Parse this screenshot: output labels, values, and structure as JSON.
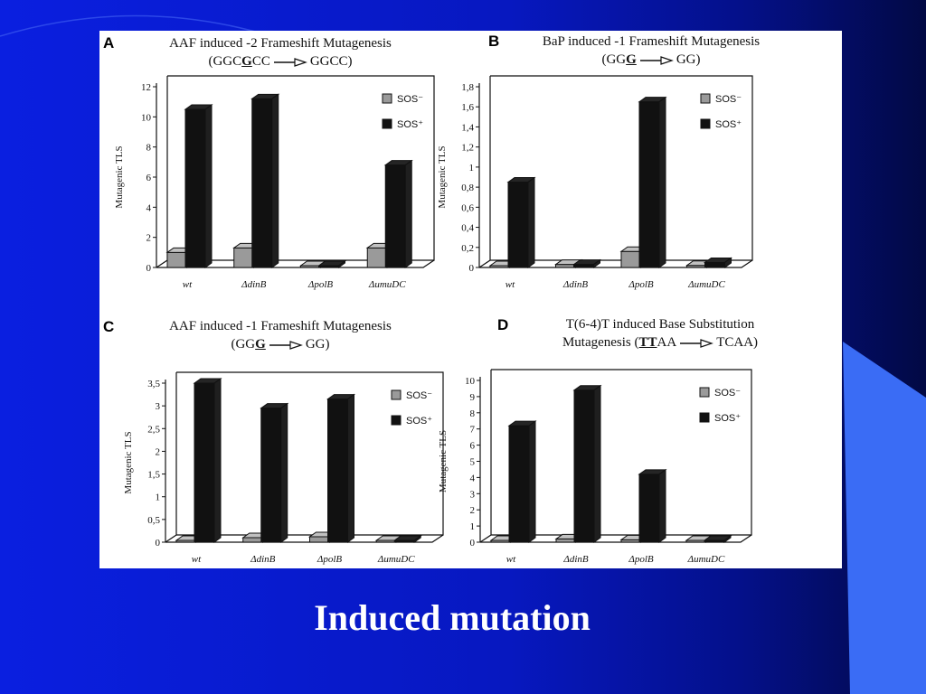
{
  "slide_title": "Induced mutation",
  "colors": {
    "sos_minus": "#9a9a9a",
    "sos_plus": "#111111",
    "background": "#0a1fe0"
  },
  "chart_data": [
    {
      "letter": "A",
      "type": "bar",
      "title_line1": "AAF induced -2 Frameshift Mutagenesis",
      "title_line2": {
        "pre": "(GGC",
        "bold": "G",
        "post": "CC",
        "target": "GGCC)"
      },
      "ylabel": "Mutagenic TLS",
      "categories": [
        "wt",
        "ΔdinB",
        "ΔpolB",
        "ΔumuDC"
      ],
      "yticks": [
        "0",
        "2",
        "4",
        "6",
        "8",
        "10",
        "12"
      ],
      "ylim": [
        0,
        12
      ],
      "series": [
        {
          "name": "SOS⁻",
          "values": [
            1.0,
            1.3,
            0.05,
            1.3
          ]
        },
        {
          "name": "SOS⁺",
          "values": [
            10.5,
            11.2,
            0.05,
            6.8
          ]
        }
      ],
      "legend": "top-right"
    },
    {
      "letter": "B",
      "type": "bar",
      "title_line1": "BaP induced -1 Frameshift Mutagenesis",
      "title_line2": {
        "pre": "(GG",
        "bold": "G",
        "post": "",
        "target": "GG)"
      },
      "ylabel": "Mutagenic TLS",
      "categories": [
        "wt",
        "ΔdinB",
        "ΔpolB",
        "ΔumuDC"
      ],
      "yticks": [
        "0",
        "0,2",
        "0,4",
        "0,6",
        "0,8",
        "1",
        "1,2",
        "1,4",
        "1,6",
        "1,8"
      ],
      "ylim": [
        0,
        1.8
      ],
      "series": [
        {
          "name": "SOS⁻",
          "values": [
            0.01,
            0.03,
            0.16,
            0.02
          ]
        },
        {
          "name": "SOS⁺",
          "values": [
            0.85,
            0.03,
            1.65,
            0.05
          ]
        }
      ],
      "legend": "top-right"
    },
    {
      "letter": "C",
      "type": "bar",
      "title_line1": "AAF  induced -1 Frameshift Mutagenesis",
      "title_line2": {
        "pre": "(GG",
        "bold": "G",
        "post": "",
        "target": "GG)"
      },
      "ylabel": "Mutagenic TLS",
      "categories": [
        "wt",
        "ΔdinB",
        "ΔpolB",
        "ΔumuDC"
      ],
      "yticks": [
        "0",
        "0,5",
        "1",
        "1,5",
        "2",
        "2,5",
        "3",
        "3,5"
      ],
      "ylim": [
        0,
        3.5
      ],
      "series": [
        {
          "name": "SOS⁻",
          "values": [
            0.01,
            0.1,
            0.12,
            0.03
          ]
        },
        {
          "name": "SOS⁺",
          "values": [
            3.5,
            2.95,
            3.15,
            0.04
          ]
        }
      ],
      "legend": "top-right"
    },
    {
      "letter": "D",
      "type": "bar",
      "title_line1": "T(6-4)T induced Base Substitution",
      "title_line2": {
        "pre": "Mutagenesis (",
        "bold": "TT",
        "post": "AA",
        "target": "TCAA)"
      },
      "ylabel": "Mutagenic TLS",
      "categories": [
        "wt",
        "ΔdinB",
        "ΔpolB",
        "ΔumuDC"
      ],
      "yticks": [
        "0",
        "1",
        "2",
        "3",
        "4",
        "5",
        "6",
        "7",
        "8",
        "9",
        "10"
      ],
      "ylim": [
        0,
        10
      ],
      "series": [
        {
          "name": "SOS⁻",
          "values": [
            0.1,
            0.2,
            0.15,
            0.05
          ]
        },
        {
          "name": "SOS⁺",
          "values": [
            7.2,
            9.4,
            4.2,
            0.05
          ]
        }
      ],
      "legend": "top-right"
    }
  ]
}
